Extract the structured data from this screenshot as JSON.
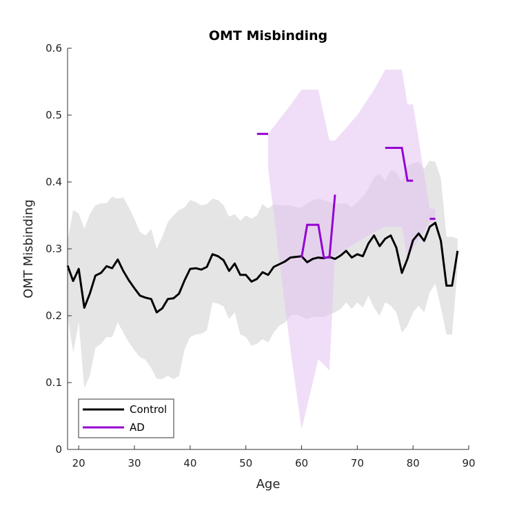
{
  "chart_data": {
    "type": "line",
    "title": "OMT Misbinding",
    "xlabel": "Age",
    "ylabel": "OMT Misbinding",
    "xlim": [
      18,
      90
    ],
    "ylim": [
      0,
      0.6
    ],
    "xticks": [
      20,
      30,
      40,
      50,
      60,
      70,
      80,
      90
    ],
    "yticks": [
      0,
      0.1,
      0.2,
      0.3,
      0.4,
      0.5,
      0.6
    ],
    "ytick_labels": [
      "0",
      "0.1",
      "0.2",
      "0.3",
      "0.4",
      "0.5",
      "0.6"
    ],
    "grid": false,
    "legend_position": "bottom-left",
    "series": [
      {
        "name": "Control",
        "color": "#000000",
        "band_color": "#e5e5e5",
        "x": [
          18,
          19,
          20,
          21,
          22,
          23,
          24,
          25,
          26,
          27,
          28,
          29,
          30,
          31,
          32,
          33,
          34,
          35,
          36,
          37,
          38,
          39,
          40,
          41,
          42,
          43,
          44,
          45,
          46,
          47,
          48,
          49,
          50,
          51,
          52,
          53,
          54,
          55,
          56,
          57,
          58,
          59,
          60,
          61,
          62,
          63,
          64,
          65,
          66,
          67,
          68,
          69,
          70,
          71,
          72,
          73,
          74,
          75,
          76,
          77,
          78,
          79,
          80,
          81,
          82,
          83,
          84,
          85,
          86,
          87,
          88
        ],
        "y": [
          0.275,
          0.252,
          0.27,
          0.212,
          0.233,
          0.26,
          0.264,
          0.274,
          0.271,
          0.284,
          0.267,
          0.253,
          0.241,
          0.23,
          0.227,
          0.225,
          0.205,
          0.211,
          0.225,
          0.226,
          0.233,
          0.253,
          0.27,
          0.271,
          0.269,
          0.273,
          0.292,
          0.289,
          0.283,
          0.267,
          0.278,
          0.261,
          0.261,
          0.251,
          0.255,
          0.265,
          0.261,
          0.273,
          0.277,
          0.281,
          0.287,
          0.288,
          0.289,
          0.28,
          0.285,
          0.287,
          0.286,
          0.288,
          0.285,
          0.29,
          0.297,
          0.287,
          0.292,
          0.289,
          0.308,
          0.32,
          0.304,
          0.315,
          0.32,
          0.302,
          0.264,
          0.285,
          0.313,
          0.323,
          0.312,
          0.333,
          0.339,
          0.312,
          0.245,
          0.245,
          0.297
        ],
        "lower": [
          0.2,
          0.145,
          0.19,
          0.092,
          0.11,
          0.152,
          0.158,
          0.168,
          0.168,
          0.19,
          0.175,
          0.16,
          0.148,
          0.138,
          0.134,
          0.122,
          0.106,
          0.105,
          0.11,
          0.105,
          0.11,
          0.15,
          0.168,
          0.172,
          0.173,
          0.178,
          0.22,
          0.218,
          0.214,
          0.195,
          0.205,
          0.172,
          0.168,
          0.155,
          0.158,
          0.165,
          0.16,
          0.175,
          0.185,
          0.19,
          0.2,
          0.202,
          0.198,
          0.195,
          0.198,
          0.198,
          0.198,
          0.202,
          0.205,
          0.21,
          0.22,
          0.21,
          0.22,
          0.212,
          0.23,
          0.212,
          0.2,
          0.22,
          0.215,
          0.205,
          0.175,
          0.185,
          0.205,
          0.215,
          0.205,
          0.235,
          0.248,
          0.212,
          0.172,
          0.172,
          0.27
        ],
        "upper": [
          0.312,
          0.358,
          0.353,
          0.33,
          0.352,
          0.365,
          0.368,
          0.368,
          0.378,
          0.375,
          0.377,
          0.362,
          0.345,
          0.325,
          0.32,
          0.33,
          0.3,
          0.318,
          0.34,
          0.35,
          0.358,
          0.362,
          0.373,
          0.37,
          0.365,
          0.367,
          0.375,
          0.373,
          0.365,
          0.348,
          0.352,
          0.342,
          0.35,
          0.345,
          0.35,
          0.367,
          0.36,
          0.367,
          0.365,
          0.365,
          0.365,
          0.362,
          0.362,
          0.368,
          0.373,
          0.375,
          0.373,
          0.37,
          0.367,
          0.368,
          0.368,
          0.362,
          0.37,
          0.378,
          0.39,
          0.407,
          0.412,
          0.402,
          0.418,
          0.415,
          0.4,
          0.425,
          0.428,
          0.43,
          0.42,
          0.432,
          0.43,
          0.405,
          0.318,
          0.318,
          0.315
        ]
      },
      {
        "name": "AD",
        "color": "#9400d3",
        "band_color": "#e4c3f3",
        "segments": [
          {
            "x": [
              52,
              54
            ],
            "y": [
              0.472,
              0.472
            ]
          },
          {
            "x": [
              60,
              61,
              62,
              63,
              64,
              65,
              66
            ],
            "y": [
              0.287,
              0.336,
              0.336,
              0.336,
              0.287,
              0.287,
              0.381
            ]
          },
          {
            "x": [
              75,
              77,
              78,
              79,
              80
            ],
            "y": [
              0.451,
              0.451,
              0.451,
              0.402,
              0.402
            ]
          },
          {
            "x": [
              83,
              84
            ],
            "y": [
              0.345,
              0.345
            ]
          }
        ],
        "band": {
          "x": [
            54,
            58,
            60,
            63,
            65,
            66,
            70,
            73,
            75,
            76,
            78,
            79,
            80,
            83,
            84
          ],
          "upper": [
            0.472,
            0.515,
            0.538,
            0.538,
            0.462,
            0.462,
            0.5,
            0.538,
            0.568,
            0.568,
            0.568,
            0.516,
            0.516,
            0.36,
            0.36
          ],
          "lower": [
            0.42,
            0.15,
            0.03,
            0.135,
            0.118,
            0.29,
            0.31,
            0.325,
            0.333,
            0.333,
            0.333,
            0.285,
            0.3,
            0.34,
            0.34
          ]
        }
      }
    ]
  }
}
